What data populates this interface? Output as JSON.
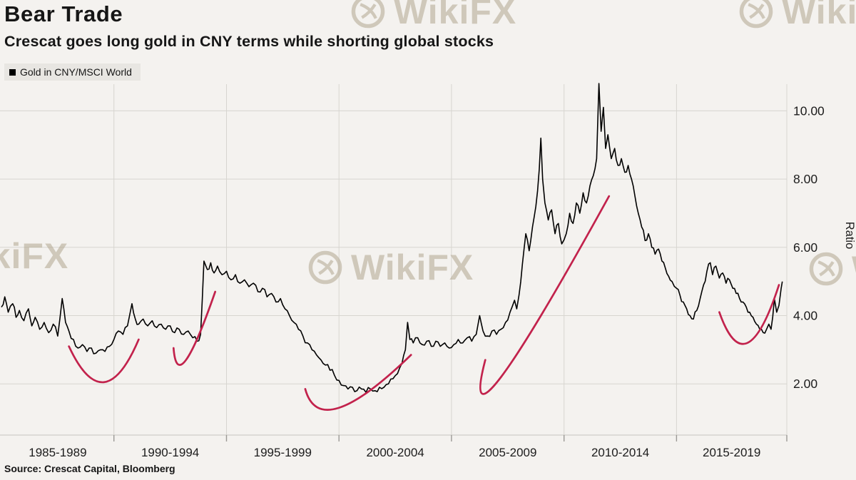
{
  "header": {
    "title": "Bear Trade",
    "subtitle": "Crescat goes long gold in CNY terms while shorting global stocks"
  },
  "legend": {
    "label": "Gold in CNY/MSCI World"
  },
  "source": "Source:  Crescat Capital, Bloomberg",
  "watermark": {
    "text": "WikiFX"
  },
  "chart_data": {
    "type": "line",
    "title": "Bear Trade",
    "subtitle": "Crescat goes long gold in CNY terms while shorting global stocks",
    "ylabel": "Ratio",
    "xlabel": "",
    "grid": true,
    "legend_position": "top-left",
    "xlim": [
      1985,
      2019.9
    ],
    "ylim": [
      0.5,
      11.2
    ],
    "xticks": [
      "1985-1989",
      "1990-1994",
      "1995-1999",
      "2000-2004",
      "2005-2009",
      "2010-2014",
      "2015-2019"
    ],
    "x_gridlines": [
      1990,
      1995,
      2000,
      2005,
      2010,
      2015,
      2019.9
    ],
    "yticks": [
      {
        "value": 2,
        "label": "2.00"
      },
      {
        "value": 4,
        "label": "4.00"
      },
      {
        "value": 6,
        "label": "6.00"
      },
      {
        "value": 8,
        "label": "8.00"
      },
      {
        "value": 10,
        "label": "10.00"
      }
    ],
    "series": [
      {
        "name": "Gold in CNY/MSCI World",
        "color": "#000000",
        "points": [
          [
            1985.0,
            4.25
          ],
          [
            1985.15,
            4.55
          ],
          [
            1985.3,
            4.1
          ],
          [
            1985.5,
            4.35
          ],
          [
            1985.65,
            3.95
          ],
          [
            1985.8,
            4.15
          ],
          [
            1986.0,
            3.85
          ],
          [
            1986.2,
            4.2
          ],
          [
            1986.35,
            3.7
          ],
          [
            1986.5,
            3.95
          ],
          [
            1986.7,
            3.6
          ],
          [
            1986.9,
            3.8
          ],
          [
            1987.1,
            3.5
          ],
          [
            1987.3,
            3.75
          ],
          [
            1987.5,
            3.4
          ],
          [
            1987.7,
            4.5
          ],
          [
            1987.85,
            3.8
          ],
          [
            1988.0,
            3.55
          ],
          [
            1988.2,
            3.3
          ],
          [
            1988.4,
            3.05
          ],
          [
            1988.6,
            3.15
          ],
          [
            1988.8,
            2.95
          ],
          [
            1989.0,
            3.05
          ],
          [
            1989.2,
            2.9
          ],
          [
            1989.4,
            3.0
          ],
          [
            1989.6,
            2.95
          ],
          [
            1989.8,
            3.1
          ],
          [
            1990.0,
            3.3
          ],
          [
            1990.2,
            3.55
          ],
          [
            1990.4,
            3.45
          ],
          [
            1990.6,
            3.7
          ],
          [
            1990.8,
            4.35
          ],
          [
            1990.95,
            3.9
          ],
          [
            1991.1,
            3.75
          ],
          [
            1991.3,
            3.9
          ],
          [
            1991.5,
            3.7
          ],
          [
            1991.7,
            3.85
          ],
          [
            1991.9,
            3.65
          ],
          [
            1992.1,
            3.75
          ],
          [
            1992.3,
            3.6
          ],
          [
            1992.5,
            3.7
          ],
          [
            1992.7,
            3.5
          ],
          [
            1992.9,
            3.6
          ],
          [
            1993.1,
            3.45
          ],
          [
            1993.3,
            3.55
          ],
          [
            1993.5,
            3.35
          ],
          [
            1993.7,
            3.25
          ],
          [
            1993.85,
            3.45
          ],
          [
            1994.0,
            5.6
          ],
          [
            1994.15,
            5.35
          ],
          [
            1994.3,
            5.55
          ],
          [
            1994.45,
            5.25
          ],
          [
            1994.6,
            5.45
          ],
          [
            1994.8,
            5.2
          ],
          [
            1995.0,
            5.3
          ],
          [
            1995.2,
            5.05
          ],
          [
            1995.4,
            5.2
          ],
          [
            1995.6,
            4.95
          ],
          [
            1995.8,
            5.05
          ],
          [
            1996.0,
            4.85
          ],
          [
            1996.2,
            4.95
          ],
          [
            1996.4,
            4.7
          ],
          [
            1996.6,
            4.8
          ],
          [
            1996.8,
            4.55
          ],
          [
            1997.0,
            4.65
          ],
          [
            1997.2,
            4.4
          ],
          [
            1997.4,
            4.5
          ],
          [
            1997.6,
            4.2
          ],
          [
            1997.8,
            4.0
          ],
          [
            1998.0,
            3.8
          ],
          [
            1998.2,
            3.6
          ],
          [
            1998.4,
            3.4
          ],
          [
            1998.6,
            3.2
          ],
          [
            1998.8,
            3.0
          ],
          [
            1999.0,
            2.85
          ],
          [
            1999.2,
            2.7
          ],
          [
            1999.4,
            2.55
          ],
          [
            1999.6,
            2.4
          ],
          [
            1999.8,
            2.25
          ],
          [
            2000.0,
            2.1
          ],
          [
            2000.2,
            1.95
          ],
          [
            2000.4,
            1.85
          ],
          [
            2000.6,
            1.9
          ],
          [
            2000.8,
            1.8
          ],
          [
            2001.0,
            1.85
          ],
          [
            2001.2,
            1.75
          ],
          [
            2001.4,
            1.85
          ],
          [
            2001.6,
            1.8
          ],
          [
            2001.8,
            1.9
          ],
          [
            2002.0,
            1.9
          ],
          [
            2002.2,
            2.0
          ],
          [
            2002.4,
            2.15
          ],
          [
            2002.6,
            2.3
          ],
          [
            2002.8,
            2.6
          ],
          [
            2002.95,
            3.0
          ],
          [
            2003.05,
            3.8
          ],
          [
            2003.15,
            3.3
          ],
          [
            2003.3,
            3.2
          ],
          [
            2003.5,
            3.35
          ],
          [
            2003.7,
            3.15
          ],
          [
            2003.9,
            3.25
          ],
          [
            2004.1,
            3.1
          ],
          [
            2004.3,
            3.25
          ],
          [
            2004.5,
            3.1
          ],
          [
            2004.7,
            3.2
          ],
          [
            2004.9,
            3.05
          ],
          [
            2005.1,
            3.15
          ],
          [
            2005.3,
            3.3
          ],
          [
            2005.5,
            3.2
          ],
          [
            2005.7,
            3.35
          ],
          [
            2005.9,
            3.25
          ],
          [
            2006.1,
            3.45
          ],
          [
            2006.25,
            4.0
          ],
          [
            2006.4,
            3.55
          ],
          [
            2006.6,
            3.4
          ],
          [
            2006.8,
            3.55
          ],
          [
            2007.0,
            3.45
          ],
          [
            2007.2,
            3.6
          ],
          [
            2007.4,
            3.8
          ],
          [
            2007.6,
            4.1
          ],
          [
            2007.8,
            4.45
          ],
          [
            2007.9,
            4.2
          ],
          [
            2008.0,
            4.6
          ],
          [
            2008.15,
            5.5
          ],
          [
            2008.3,
            6.4
          ],
          [
            2008.45,
            5.9
          ],
          [
            2008.6,
            6.6
          ],
          [
            2008.75,
            7.2
          ],
          [
            2008.9,
            8.3
          ],
          [
            2008.97,
            9.2
          ],
          [
            2009.05,
            8.0
          ],
          [
            2009.15,
            7.3
          ],
          [
            2009.3,
            6.8
          ],
          [
            2009.45,
            7.1
          ],
          [
            2009.6,
            6.4
          ],
          [
            2009.75,
            6.7
          ],
          [
            2009.9,
            6.1
          ],
          [
            2010.1,
            6.4
          ],
          [
            2010.25,
            7.0
          ],
          [
            2010.4,
            6.7
          ],
          [
            2010.55,
            7.3
          ],
          [
            2010.7,
            7.0
          ],
          [
            2010.85,
            7.6
          ],
          [
            2011.0,
            7.3
          ],
          [
            2011.15,
            7.8
          ],
          [
            2011.3,
            8.1
          ],
          [
            2011.45,
            8.6
          ],
          [
            2011.55,
            10.8
          ],
          [
            2011.65,
            9.4
          ],
          [
            2011.75,
            10.1
          ],
          [
            2011.85,
            8.9
          ],
          [
            2011.95,
            9.3
          ],
          [
            2012.1,
            8.6
          ],
          [
            2012.25,
            8.9
          ],
          [
            2012.4,
            8.4
          ],
          [
            2012.55,
            8.6
          ],
          [
            2012.7,
            8.2
          ],
          [
            2012.85,
            8.4
          ],
          [
            2013.0,
            8.0
          ],
          [
            2013.15,
            7.5
          ],
          [
            2013.3,
            7.0
          ],
          [
            2013.45,
            6.6
          ],
          [
            2013.6,
            6.2
          ],
          [
            2013.75,
            6.4
          ],
          [
            2013.9,
            6.0
          ],
          [
            2014.05,
            5.8
          ],
          [
            2014.2,
            5.95
          ],
          [
            2014.35,
            5.6
          ],
          [
            2014.5,
            5.4
          ],
          [
            2014.65,
            5.15
          ],
          [
            2014.8,
            5.0
          ],
          [
            2015.0,
            4.8
          ],
          [
            2015.15,
            4.6
          ],
          [
            2015.3,
            4.4
          ],
          [
            2015.45,
            4.2
          ],
          [
            2015.6,
            4.0
          ],
          [
            2015.75,
            3.9
          ],
          [
            2015.9,
            4.15
          ],
          [
            2016.05,
            4.5
          ],
          [
            2016.2,
            4.9
          ],
          [
            2016.35,
            5.3
          ],
          [
            2016.5,
            5.55
          ],
          [
            2016.6,
            5.2
          ],
          [
            2016.75,
            5.45
          ],
          [
            2016.9,
            5.1
          ],
          [
            2017.05,
            5.25
          ],
          [
            2017.2,
            4.95
          ],
          [
            2017.35,
            5.05
          ],
          [
            2017.5,
            4.8
          ],
          [
            2017.65,
            4.65
          ],
          [
            2017.8,
            4.5
          ],
          [
            2017.95,
            4.4
          ],
          [
            2018.1,
            4.25
          ],
          [
            2018.25,
            4.1
          ],
          [
            2018.4,
            3.95
          ],
          [
            2018.55,
            3.75
          ],
          [
            2018.7,
            3.6
          ],
          [
            2018.85,
            3.5
          ],
          [
            2019.0,
            3.6
          ],
          [
            2019.1,
            3.75
          ],
          [
            2019.2,
            3.6
          ],
          [
            2019.35,
            4.5
          ],
          [
            2019.45,
            4.1
          ],
          [
            2019.55,
            4.3
          ],
          [
            2019.65,
            4.8
          ],
          [
            2019.7,
            5.0
          ]
        ]
      }
    ],
    "annotation_color": "#c2224c",
    "annotations": [
      {
        "label": "bear-swoosh-1987-1990",
        "points": [
          [
            1988.0,
            3.1
          ],
          [
            1989.55,
            2.05
          ],
          [
            1991.1,
            3.3
          ]
        ]
      },
      {
        "label": "bear-swoosh-1992-1994",
        "points": [
          [
            1992.65,
            3.05
          ],
          [
            1993.2,
            2.7
          ],
          [
            1994.5,
            4.7
          ]
        ]
      },
      {
        "label": "bear-swoosh-1998-2003",
        "points": [
          [
            1998.5,
            1.85
          ],
          [
            2000.0,
            1.3
          ],
          [
            2003.2,
            2.85
          ]
        ]
      },
      {
        "label": "bear-swoosh-2006-2012",
        "points": [
          [
            2006.5,
            2.7
          ],
          [
            2007.2,
            2.2
          ],
          [
            2012.0,
            7.5
          ]
        ]
      },
      {
        "label": "bear-swoosh-2017-2019",
        "points": [
          [
            2016.9,
            4.1
          ],
          [
            2018.15,
            3.2
          ],
          [
            2019.55,
            4.9
          ]
        ]
      }
    ],
    "style": {
      "noise_amplitude": 0.1,
      "background": "#f4f2ef",
      "grid_color": "#d7d5d0",
      "axis_color": "#9b9995",
      "line_width": 1.6
    }
  }
}
